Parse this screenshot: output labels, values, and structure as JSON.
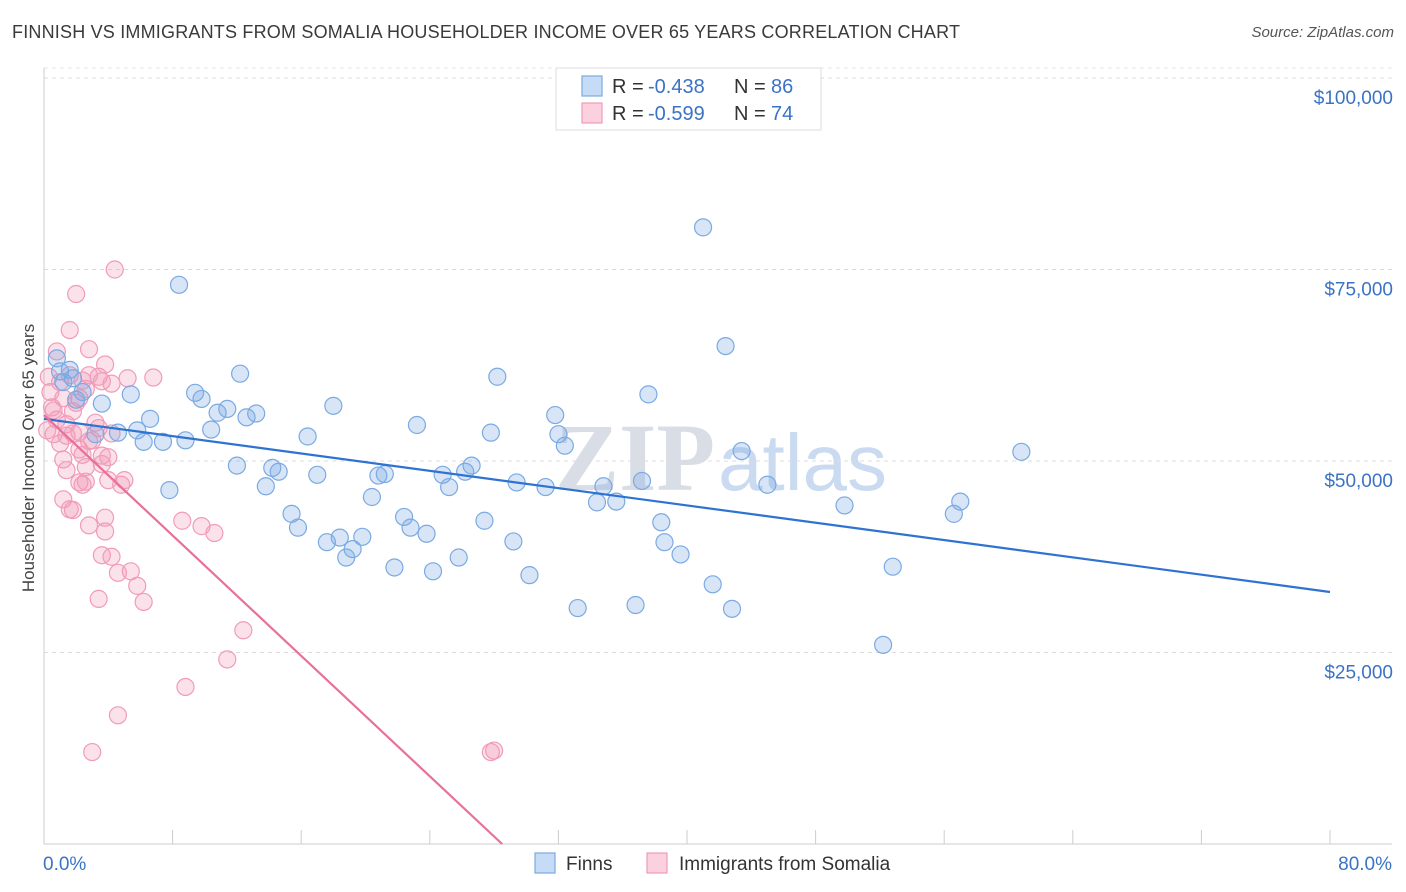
{
  "title": "FINNISH VS IMMIGRANTS FROM SOMALIA HOUSEHOLDER INCOME OVER 65 YEARS CORRELATION CHART",
  "source": "Source: ZipAtlas.com",
  "watermark": {
    "part1": "ZIP",
    "part2": "atlas"
  },
  "colors": {
    "blue": "#7aaae3",
    "blue_line": "#2e72d2",
    "pink": "#f19bb8",
    "pink_line": "#e8709a",
    "tick_text": "#3b73c4"
  },
  "legend": {
    "rows": [
      {
        "r_label": "R = ",
        "r_value": "-0.438",
        "n_label": "N = ",
        "n_value": "86"
      },
      {
        "r_label": "R = ",
        "r_value": "-0.599",
        "n_label": "N = ",
        "n_value": "74"
      }
    ]
  },
  "bottom_legend": {
    "series1": "Finns",
    "series2": "Immigrants from Somalia"
  },
  "chart_data": {
    "type": "scatter",
    "xlabel": "",
    "ylabel": "Householder Income Over 65 years",
    "xlim": [
      0,
      80
    ],
    "ylim": [
      0,
      105000
    ],
    "x_tick_labels": [
      "0.0%",
      "80.0%"
    ],
    "y_ticks": [
      {
        "value": 100000,
        "label": "$100,000"
      },
      {
        "value": 75000,
        "label": "$75,000"
      },
      {
        "value": 50000,
        "label": "$50,000"
      },
      {
        "value": 25000,
        "label": "$25,000"
      }
    ],
    "grid": "horizontal dashed",
    "legend_placement": "top-center",
    "series": [
      {
        "name": "Finns",
        "color": "#7aaae3",
        "trend": {
          "x": [
            0,
            80
          ],
          "y": [
            55500,
            32900
          ]
        },
        "points": [
          [
            0.8,
            63400
          ],
          [
            1.0,
            61700
          ],
          [
            1.2,
            60300
          ],
          [
            1.6,
            61900
          ],
          [
            1.8,
            60800
          ],
          [
            2.0,
            58000
          ],
          [
            2.4,
            59000
          ],
          [
            3.2,
            53500
          ],
          [
            3.6,
            57500
          ],
          [
            4.6,
            53700
          ],
          [
            5.4,
            58700
          ],
          [
            5.8,
            54000
          ],
          [
            6.2,
            52500
          ],
          [
            6.6,
            55500
          ],
          [
            7.4,
            52500
          ],
          [
            7.8,
            46200
          ],
          [
            8.4,
            73000
          ],
          [
            8.8,
            52700
          ],
          [
            9.4,
            58900
          ],
          [
            9.8,
            58100
          ],
          [
            10.4,
            54100
          ],
          [
            10.8,
            56300
          ],
          [
            11.4,
            56800
          ],
          [
            12.0,
            49400
          ],
          [
            12.2,
            61400
          ],
          [
            12.6,
            55700
          ],
          [
            13.2,
            56200
          ],
          [
            13.8,
            46700
          ],
          [
            14.2,
            49100
          ],
          [
            14.6,
            48600
          ],
          [
            15.4,
            43100
          ],
          [
            15.8,
            41300
          ],
          [
            16.4,
            53200
          ],
          [
            17.0,
            48200
          ],
          [
            17.6,
            39400
          ],
          [
            18.0,
            57200
          ],
          [
            18.4,
            40000
          ],
          [
            18.8,
            37400
          ],
          [
            19.2,
            38500
          ],
          [
            19.8,
            40100
          ],
          [
            20.4,
            45300
          ],
          [
            20.8,
            48100
          ],
          [
            21.2,
            48300
          ],
          [
            21.8,
            36100
          ],
          [
            22.4,
            42700
          ],
          [
            22.8,
            41300
          ],
          [
            23.2,
            54700
          ],
          [
            23.8,
            40500
          ],
          [
            24.2,
            35600
          ],
          [
            24.8,
            48200
          ],
          [
            25.2,
            46600
          ],
          [
            25.8,
            37400
          ],
          [
            26.2,
            48600
          ],
          [
            26.6,
            49400
          ],
          [
            27.4,
            42200
          ],
          [
            27.8,
            53700
          ],
          [
            28.2,
            61000
          ],
          [
            29.2,
            39500
          ],
          [
            29.4,
            47200
          ],
          [
            30.2,
            35100
          ],
          [
            31.2,
            46600
          ],
          [
            31.8,
            56000
          ],
          [
            32.0,
            53500
          ],
          [
            32.4,
            52000
          ],
          [
            33.2,
            30800
          ],
          [
            34.4,
            44600
          ],
          [
            34.8,
            46700
          ],
          [
            35.6,
            44700
          ],
          [
            36.8,
            31200
          ],
          [
            37.2,
            47400
          ],
          [
            37.6,
            58700
          ],
          [
            38.4,
            42000
          ],
          [
            38.6,
            39400
          ],
          [
            39.6,
            37800
          ],
          [
            41.0,
            80500
          ],
          [
            41.6,
            33900
          ],
          [
            42.4,
            65000
          ],
          [
            42.8,
            30700
          ],
          [
            43.4,
            51300
          ],
          [
            45.0,
            46900
          ],
          [
            49.8,
            44200
          ],
          [
            52.2,
            26000
          ],
          [
            52.8,
            36200
          ],
          [
            56.6,
            43100
          ],
          [
            57.0,
            44700
          ],
          [
            60.8,
            51200
          ]
        ]
      },
      {
        "name": "Immigrants from Somalia",
        "color": "#f19bb8",
        "trend": {
          "x": [
            0,
            28.5
          ],
          "y": [
            56000,
            0
          ]
        },
        "points": [
          [
            0.2,
            54000
          ],
          [
            0.3,
            61000
          ],
          [
            0.4,
            59000
          ],
          [
            0.5,
            57000
          ],
          [
            0.6,
            56600
          ],
          [
            0.6,
            53500
          ],
          [
            0.8,
            64300
          ],
          [
            0.8,
            55400
          ],
          [
            1.0,
            60300
          ],
          [
            1.0,
            52300
          ],
          [
            1.2,
            50200
          ],
          [
            1.2,
            58200
          ],
          [
            1.2,
            45000
          ],
          [
            1.4,
            54800
          ],
          [
            1.4,
            53300
          ],
          [
            1.4,
            48800
          ],
          [
            1.6,
            43700
          ],
          [
            1.6,
            67100
          ],
          [
            1.6,
            61200
          ],
          [
            1.8,
            56500
          ],
          [
            1.8,
            53600
          ],
          [
            1.8,
            43600
          ],
          [
            2.0,
            71800
          ],
          [
            2.0,
            57600
          ],
          [
            2.2,
            58200
          ],
          [
            2.2,
            53800
          ],
          [
            2.2,
            51500
          ],
          [
            2.2,
            47200
          ],
          [
            2.4,
            60500
          ],
          [
            2.4,
            50800
          ],
          [
            2.4,
            46900
          ],
          [
            2.6,
            59400
          ],
          [
            2.6,
            49200
          ],
          [
            2.6,
            47300
          ],
          [
            2.8,
            64600
          ],
          [
            2.8,
            61200
          ],
          [
            2.8,
            52600
          ],
          [
            2.8,
            41600
          ],
          [
            3.0,
            12000
          ],
          [
            3.0,
            52700
          ],
          [
            3.2,
            55000
          ],
          [
            3.4,
            32000
          ],
          [
            3.4,
            61000
          ],
          [
            3.4,
            54300
          ],
          [
            3.6,
            50700
          ],
          [
            3.6,
            49600
          ],
          [
            3.6,
            37700
          ],
          [
            3.6,
            60400
          ],
          [
            3.8,
            40800
          ],
          [
            3.8,
            42600
          ],
          [
            3.8,
            62600
          ],
          [
            4.0,
            47500
          ],
          [
            4.0,
            50500
          ],
          [
            4.2,
            37500
          ],
          [
            4.2,
            60100
          ],
          [
            4.2,
            53600
          ],
          [
            4.4,
            75000
          ],
          [
            4.6,
            35400
          ],
          [
            4.6,
            16800
          ],
          [
            4.8,
            46900
          ],
          [
            5.0,
            47500
          ],
          [
            5.2,
            60800
          ],
          [
            5.4,
            35600
          ],
          [
            5.8,
            33700
          ],
          [
            6.2,
            31600
          ],
          [
            6.8,
            60900
          ],
          [
            8.6,
            42200
          ],
          [
            8.8,
            20500
          ],
          [
            9.8,
            41500
          ],
          [
            10.6,
            40600
          ],
          [
            11.4,
            24100
          ],
          [
            12.4,
            27900
          ],
          [
            27.8,
            12000
          ],
          [
            28.0,
            12200
          ]
        ]
      }
    ]
  }
}
